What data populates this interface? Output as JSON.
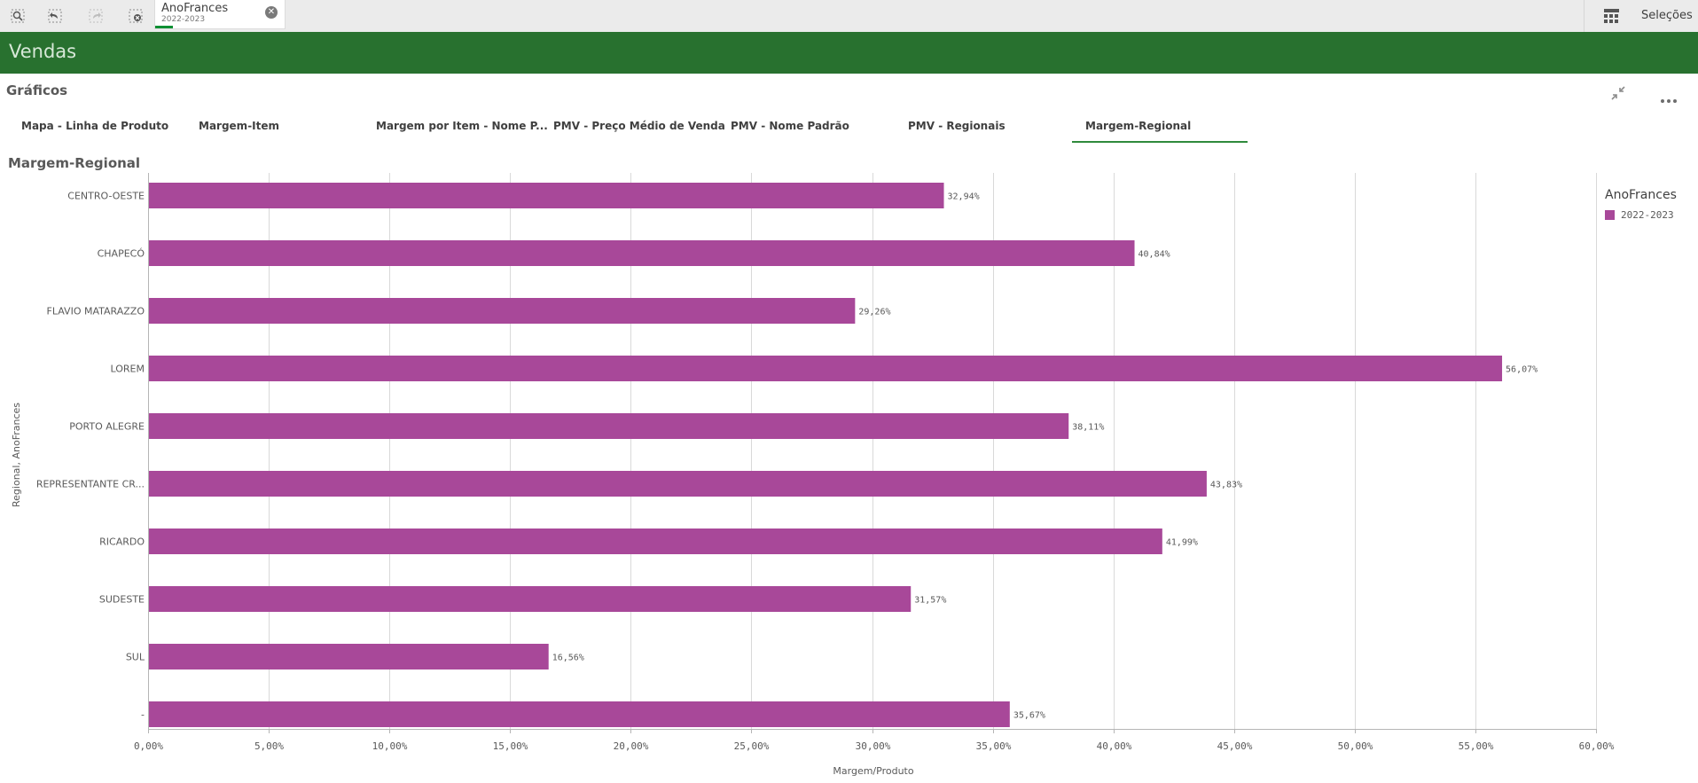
{
  "toolbar": {
    "buttons": [
      {
        "icon": "smart-search-icon"
      },
      {
        "icon": "step-back-icon"
      },
      {
        "icon": "step-forward-icon"
      },
      {
        "icon": "clear-selections-icon"
      }
    ],
    "selection": {
      "field": "AnoFrances",
      "value": "2022-2023",
      "clear_icon": "close-icon"
    },
    "selections_label": "Seleções",
    "selections_icon": "grid-icon"
  },
  "app": {
    "title": "Vendas",
    "header_color": "#28712f"
  },
  "sheet": {
    "title": "Gráficos",
    "icons": [
      "exit-fullscreen-icon",
      "more-options-icon"
    ]
  },
  "tabs": [
    {
      "label": "Mapa - Linha de Produto",
      "active": false
    },
    {
      "label": "Margem-Item",
      "active": false
    },
    {
      "label": "Margem por Item - Nome P...",
      "active": false
    },
    {
      "label": "PMV - Preço Médio de Venda",
      "active": false
    },
    {
      "label": "PMV - Nome Padrão",
      "active": false
    },
    {
      "label": "PMV - Regionais",
      "active": false
    },
    {
      "label": "Margem-Regional",
      "active": true
    }
  ],
  "chart": {
    "title": "Margem-Regional"
  },
  "chart_data": {
    "type": "bar",
    "orientation": "horizontal",
    "title": "Margem-Regional",
    "xlabel": "Margem/Produto",
    "ylabel": "Regional, AnoFrances",
    "categories": [
      "CENTRO-OESTE",
      "CHAPECÓ",
      "FLAVIO MATARAZZO",
      "LOREM",
      "PORTO ALEGRE",
      "REPRESENTANTE CR...",
      "RICARDO",
      "SUDESTE",
      "SUL",
      "-"
    ],
    "series": [
      {
        "name": "2022-2023",
        "color": "#a84899",
        "values": [
          32.94,
          40.84,
          29.26,
          56.07,
          38.11,
          43.83,
          41.99,
          31.57,
          16.56,
          35.67
        ],
        "labels": [
          "32,94%",
          "40,84%",
          "29,26%",
          "56,07%",
          "38,11%",
          "43,83%",
          "41,99%",
          "31,57%",
          "16,56%",
          "35,67%"
        ]
      }
    ],
    "xlim": [
      0,
      60
    ],
    "ticks": [
      0,
      5,
      10,
      15,
      20,
      25,
      30,
      35,
      40,
      45,
      50,
      55,
      60
    ],
    "tick_labels": [
      "0,00%",
      "5,00%",
      "10,00%",
      "15,00%",
      "20,00%",
      "25,00%",
      "30,00%",
      "35,00%",
      "40,00%",
      "45,00%",
      "50,00%",
      "55,00%",
      "60,00%"
    ],
    "grid": true,
    "legend": {
      "title": "AnoFrances",
      "position": "right",
      "items": [
        "2022-2023"
      ]
    }
  }
}
